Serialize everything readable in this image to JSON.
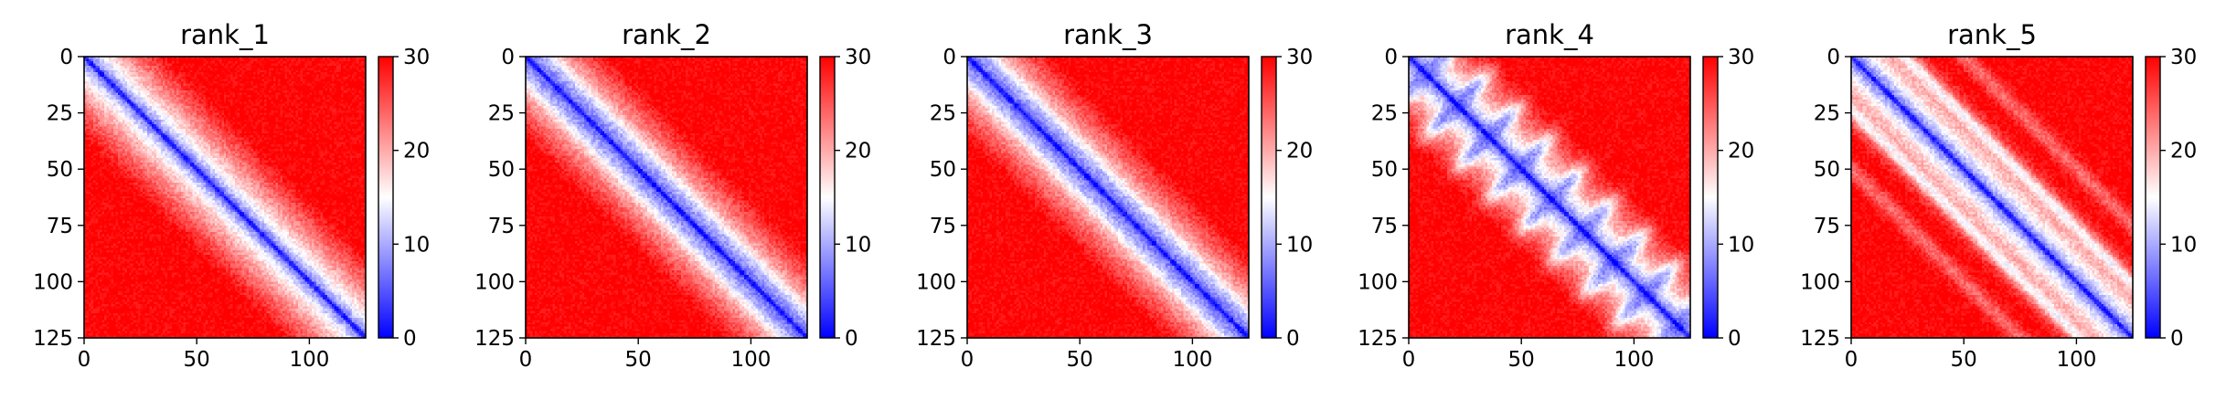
{
  "figure": {
    "cmap": {
      "low": "#0000ff",
      "mid": "#ffffff",
      "high": "#ff0000",
      "vmin": 0,
      "vmax": 30,
      "vcenter": 15
    }
  },
  "chart_data": [
    {
      "type": "heatmap",
      "title": "rank_1",
      "x_ticks": [
        0,
        50,
        100
      ],
      "y_ticks": [
        0,
        25,
        50,
        75,
        100,
        125
      ],
      "xlim": [
        0,
        125
      ],
      "ylim": [
        125,
        0
      ],
      "colorbar": {
        "ticks": [
          0,
          10,
          20,
          30
        ],
        "range": [
          0,
          30
        ]
      },
      "matrix_size": 125,
      "pattern": "diagonal low values; mostly red (~30) off-diagonal"
    },
    {
      "type": "heatmap",
      "title": "rank_2",
      "x_ticks": [
        0,
        50,
        100
      ],
      "y_ticks": [
        0,
        25,
        50,
        75,
        100,
        125
      ],
      "xlim": [
        0,
        125
      ],
      "ylim": [
        125,
        0
      ],
      "colorbar": {
        "ticks": [
          0,
          10,
          20,
          30
        ],
        "range": [
          0,
          30
        ]
      },
      "matrix_size": 125,
      "pattern": "diagonal low values; mostly red (~30) off-diagonal"
    },
    {
      "type": "heatmap",
      "title": "rank_3",
      "x_ticks": [
        0,
        50,
        100
      ],
      "y_ticks": [
        0,
        25,
        50,
        75,
        100,
        125
      ],
      "xlim": [
        0,
        125
      ],
      "ylim": [
        125,
        0
      ],
      "colorbar": {
        "ticks": [
          0,
          10,
          20,
          30
        ],
        "range": [
          0,
          30
        ]
      },
      "matrix_size": 125,
      "pattern": "diagonal low values; mostly red (~30) off-diagonal"
    },
    {
      "type": "heatmap",
      "title": "rank_4",
      "x_ticks": [
        0,
        50,
        100
      ],
      "y_ticks": [
        0,
        25,
        50,
        75,
        100,
        125
      ],
      "xlim": [
        0,
        125
      ],
      "ylim": [
        125,
        0
      ],
      "colorbar": {
        "ticks": [
          0,
          10,
          20,
          30
        ],
        "range": [
          0,
          30
        ]
      },
      "matrix_size": 125,
      "pattern": "diagonal low values with light off-diagonal blobs"
    },
    {
      "type": "heatmap",
      "title": "rank_5",
      "x_ticks": [
        0,
        50,
        100
      ],
      "y_ticks": [
        0,
        25,
        50,
        75,
        100,
        125
      ],
      "xlim": [
        0,
        125
      ],
      "ylim": [
        125,
        0
      ],
      "colorbar": {
        "ticks": [
          0,
          10,
          20,
          30
        ],
        "range": [
          0,
          30
        ]
      },
      "matrix_size": 125,
      "pattern": "diagonal low values with parallel lighter anti-stripes"
    }
  ]
}
